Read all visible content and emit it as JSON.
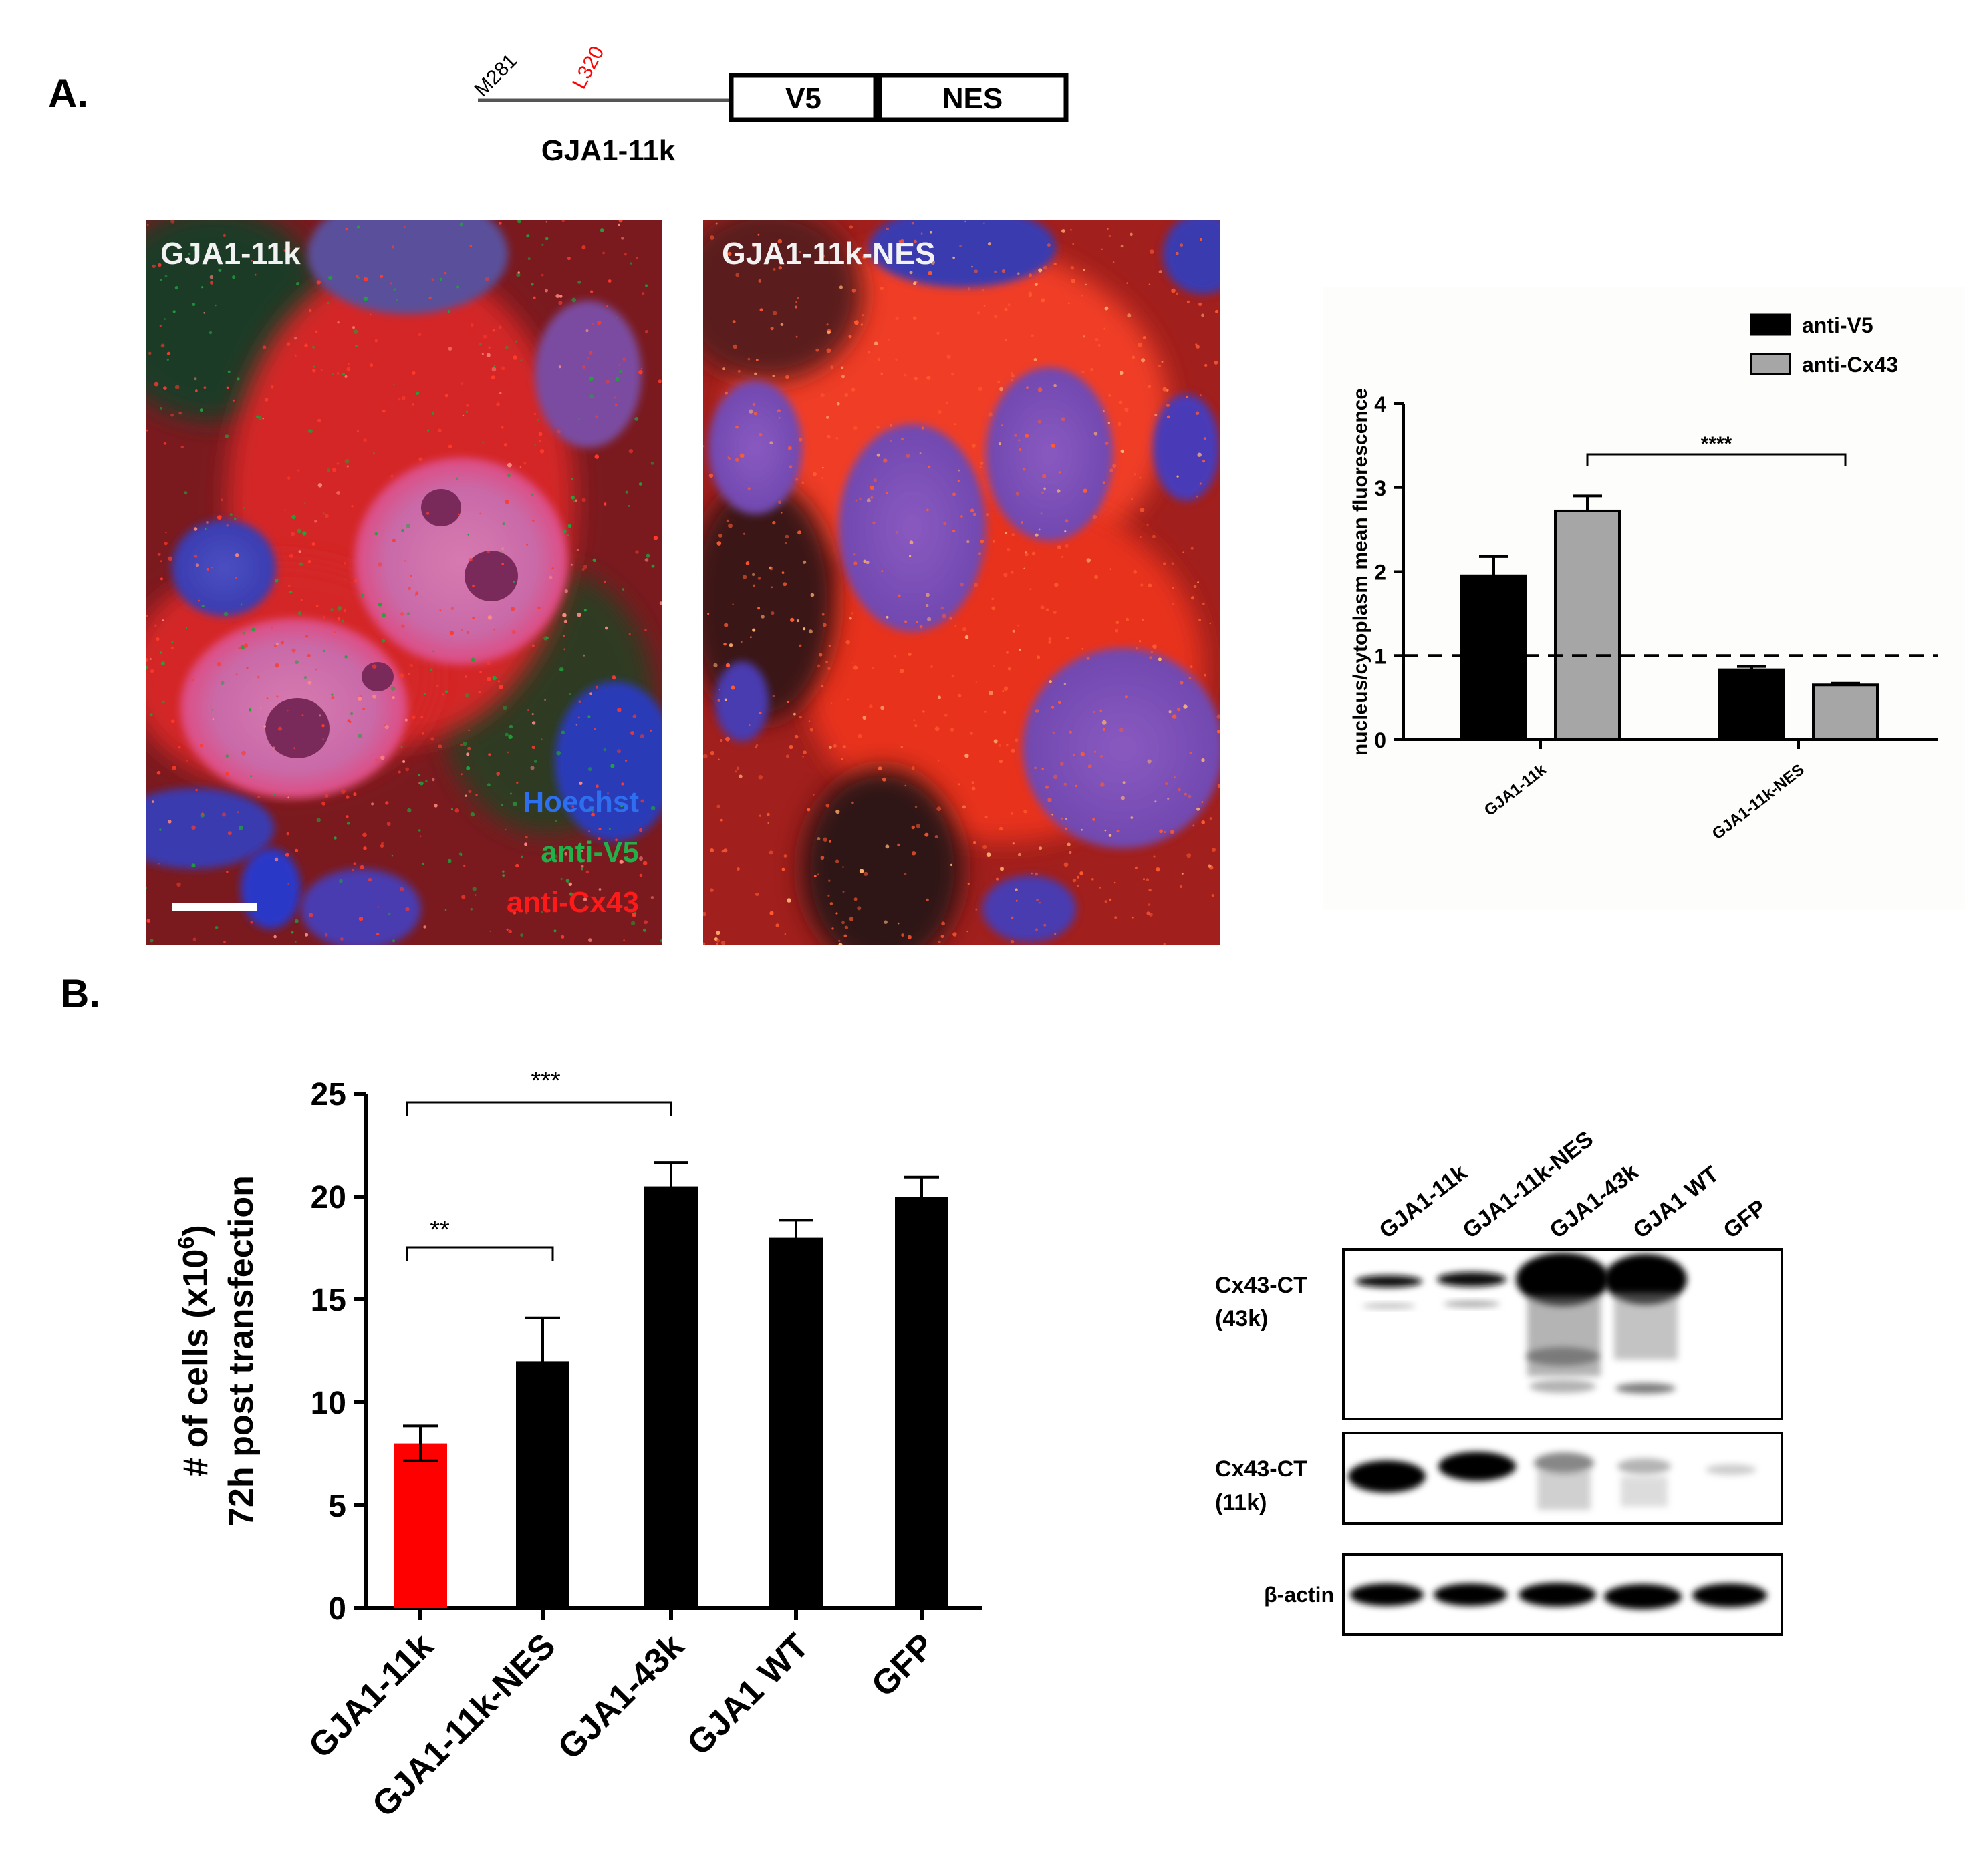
{
  "panel_a": {
    "label": "A.",
    "construct": {
      "start_residue": "M281",
      "mutation_residue": "L320",
      "tag1": "V5",
      "tag2": "NES",
      "name": "GJA1-11k"
    },
    "micrographs": {
      "left_title": "GJA1-11k",
      "right_title": "GJA1-11k-NES",
      "legend_hoechst": "Hoechst",
      "legend_v5": "anti-V5",
      "legend_cx43": "anti-Cx43"
    }
  },
  "panel_b": {
    "label": "B.",
    "western_blot": {
      "lanes": [
        "GJA1-11k",
        "GJA1-11k-NES",
        "GJA1-43k",
        "GJA1 WT",
        "GFP"
      ],
      "row1_label_line1": "Cx43-CT",
      "row1_label_line2": "(43k)",
      "row2_label_line1": "Cx43-CT",
      "row2_label_line2": "(11k)",
      "row3_label": "β-actin"
    }
  },
  "colors": {
    "black_bar": "#000000",
    "grey_bar": "#a6a6a6",
    "red_bar": "#ff0000",
    "hoechst": "#2f5fd0",
    "v5": "#1fa33a",
    "cx43": "#ff2020",
    "mutation": "#ff0000"
  },
  "chart_data": [
    {
      "type": "bar",
      "ylabel": "nucleus/cytoplasm mean fluorescence",
      "categories": [
        "GJA1-11k",
        "GJA1-11k-NES"
      ],
      "series": [
        {
          "name": "anti-V5",
          "values": [
            1.95,
            0.83
          ],
          "errors": [
            0.23,
            0.04
          ]
        },
        {
          "name": "anti-Cx43",
          "values": [
            2.72,
            0.65
          ],
          "errors": [
            0.18,
            0.02
          ]
        }
      ],
      "ylim": [
        0,
        4
      ],
      "yticks": [
        0,
        1,
        2,
        3,
        4
      ],
      "reference_line": 1,
      "significance": [
        {
          "label": "****"
        }
      ],
      "legend": "top-right",
      "grid": false
    },
    {
      "type": "bar",
      "ylabel_line1": "# of cells (x10",
      "ylabel_superscript": "6",
      "ylabel_line1_end": ")",
      "ylabel_line2": "72h post transfection",
      "categories": [
        "GJA1-11k",
        "GJA1-11k-NES",
        "GJA1-43k",
        "GJA1 WT",
        "GFP"
      ],
      "values": [
        8.0,
        12.0,
        20.5,
        18.0,
        20.0
      ],
      "errors": [
        0.85,
        2.1,
        1.15,
        0.85,
        0.95
      ],
      "ylim": [
        0,
        25
      ],
      "yticks": [
        0,
        5,
        10,
        15,
        20,
        25
      ],
      "significance": [
        {
          "label": "**"
        },
        {
          "label": "***"
        }
      ],
      "grid": false
    }
  ]
}
